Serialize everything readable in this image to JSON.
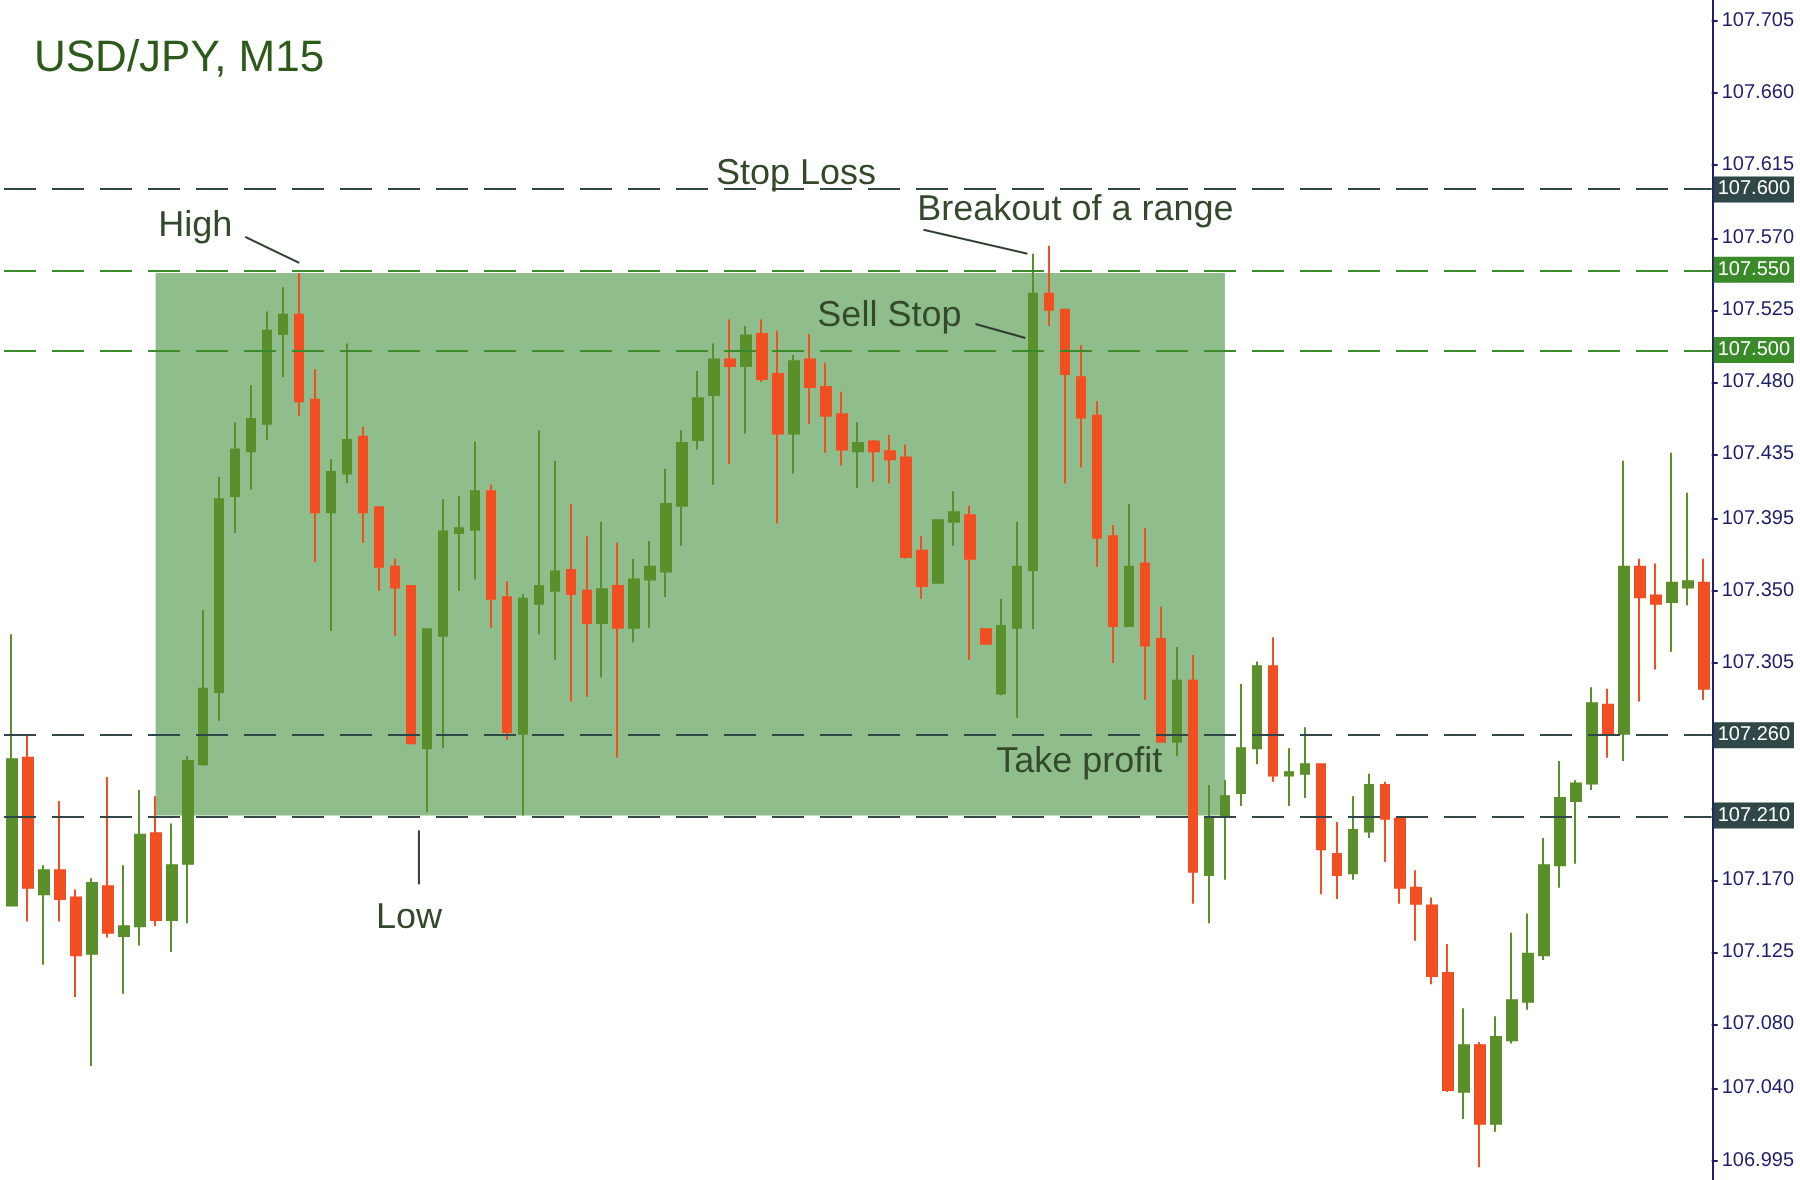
{
  "chart_data": {
    "type": "candlestick",
    "title": "USD/JPY, M15",
    "categories": [
      null,
      null,
      null,
      null,
      null,
      null,
      null,
      null,
      null,
      null,
      null,
      null,
      null,
      null,
      null,
      null,
      null,
      null,
      null,
      null,
      null,
      null,
      null,
      null,
      null,
      null,
      null,
      null,
      null,
      null,
      null,
      null,
      null,
      null,
      null,
      null,
      null,
      null,
      null,
      null,
      null,
      null,
      null,
      null,
      null,
      null,
      null,
      null,
      null,
      null,
      null,
      null,
      null,
      null,
      null,
      null,
      null,
      null,
      null,
      null,
      null,
      null,
      null,
      null,
      null,
      null,
      null,
      null,
      null,
      null,
      null,
      null,
      null,
      null,
      null,
      null,
      null,
      null,
      null,
      null,
      null,
      null,
      null,
      null,
      null,
      null,
      null,
      null,
      null,
      null,
      null,
      null,
      null,
      null,
      null,
      null,
      null,
      null,
      null,
      null,
      null,
      null,
      null,
      null,
      null,
      null,
      null
    ],
    "ohlc": [
      [
        107.154,
        107.323,
        107.154,
        107.245
      ],
      [
        107.246,
        107.26,
        107.144,
        107.165
      ],
      [
        107.161,
        107.179,
        107.117,
        107.176
      ],
      [
        107.176,
        107.219,
        107.144,
        107.158
      ],
      [
        107.159,
        107.164,
        107.097,
        107.123
      ],
      [
        107.124,
        107.171,
        107.054,
        107.168
      ],
      [
        107.166,
        107.234,
        107.134,
        107.137
      ],
      [
        107.135,
        107.179,
        107.099,
        107.141
      ],
      [
        107.141,
        107.226,
        107.129,
        107.198
      ],
      [
        107.199,
        107.222,
        107.141,
        107.145
      ],
      [
        107.145,
        107.205,
        107.125,
        107.179
      ],
      [
        107.18,
        107.247,
        107.143,
        107.244
      ],
      [
        107.242,
        107.338,
        107.241,
        107.289
      ],
      [
        107.287,
        107.421,
        107.269,
        107.407
      ],
      [
        107.409,
        107.455,
        107.386,
        107.438
      ],
      [
        107.437,
        107.478,
        107.413,
        107.457
      ],
      [
        107.454,
        107.524,
        107.444,
        107.512
      ],
      [
        107.51,
        107.539,
        107.483,
        107.522
      ],
      [
        107.522,
        107.548,
        107.459,
        107.468
      ],
      [
        107.469,
        107.488,
        107.368,
        107.399
      ],
      [
        107.399,
        107.432,
        107.325,
        107.424
      ],
      [
        107.423,
        107.504,
        107.417,
        107.444
      ],
      [
        107.446,
        107.452,
        107.38,
        107.399
      ],
      [
        107.402,
        107.402,
        107.35,
        107.365
      ],
      [
        107.365,
        107.37,
        107.322,
        107.352
      ],
      [
        107.353,
        107.353,
        107.255,
        107.255
      ],
      [
        107.252,
        107.326,
        107.212,
        107.326
      ],
      [
        107.322,
        107.407,
        107.252,
        107.387
      ],
      [
        107.386,
        107.409,
        107.35,
        107.389
      ],
      [
        107.388,
        107.443,
        107.357,
        107.412
      ],
      [
        107.412,
        107.416,
        107.327,
        107.345
      ],
      [
        107.346,
        107.356,
        107.257,
        107.262
      ],
      [
        107.261,
        107.348,
        107.21,
        107.345
      ],
      [
        107.342,
        107.45,
        107.323,
        107.353
      ],
      [
        107.35,
        107.431,
        107.307,
        107.362
      ],
      [
        107.363,
        107.404,
        107.281,
        107.348
      ],
      [
        107.35,
        107.384,
        107.284,
        107.33
      ],
      [
        107.33,
        107.393,
        107.296,
        107.351
      ],
      [
        107.353,
        107.38,
        107.246,
        107.327
      ],
      [
        107.327,
        107.37,
        107.318,
        107.357
      ],
      [
        107.357,
        107.381,
        107.327,
        107.365
      ],
      [
        107.362,
        107.426,
        107.346,
        107.404
      ],
      [
        107.403,
        107.45,
        107.378,
        107.442
      ],
      [
        107.444,
        107.487,
        107.438,
        107.47
      ],
      [
        107.472,
        107.504,
        107.416,
        107.494
      ],
      [
        107.494,
        107.519,
        107.429,
        107.49
      ],
      [
        107.49,
        107.515,
        107.448,
        107.509
      ],
      [
        107.51,
        107.519,
        107.48,
        107.482
      ],
      [
        107.485,
        107.512,
        107.392,
        107.448
      ],
      [
        107.448,
        107.497,
        107.423,
        107.493
      ],
      [
        107.494,
        107.51,
        107.454,
        107.477
      ],
      [
        107.477,
        107.492,
        107.436,
        107.459
      ],
      [
        107.46,
        107.474,
        107.428,
        107.438
      ],
      [
        107.437,
        107.455,
        107.414,
        107.442
      ],
      [
        107.443,
        107.444,
        107.418,
        107.437
      ],
      [
        107.437,
        107.447,
        107.417,
        107.432
      ],
      [
        107.433,
        107.441,
        107.37,
        107.371
      ],
      [
        107.375,
        107.384,
        107.345,
        107.353
      ],
      [
        107.355,
        107.394,
        107.355,
        107.394
      ],
      [
        107.393,
        107.412,
        107.378,
        107.399
      ],
      [
        107.397,
        107.403,
        107.307,
        107.37
      ],
      [
        107.326,
        107.326,
        107.317,
        107.317
      ],
      [
        107.286,
        107.345,
        107.285,
        107.328
      ],
      [
        107.327,
        107.393,
        107.271,
        107.365
      ],
      [
        107.363,
        107.56,
        107.326,
        107.535
      ],
      [
        107.535,
        107.565,
        107.515,
        107.525
      ],
      [
        107.525,
        107.525,
        107.417,
        107.485
      ],
      [
        107.483,
        107.503,
        107.427,
        107.458
      ],
      [
        107.459,
        107.468,
        107.365,
        107.383
      ],
      [
        107.384,
        107.391,
        107.305,
        107.328
      ],
      [
        107.328,
        107.404,
        107.328,
        107.365
      ],
      [
        107.367,
        107.389,
        107.282,
        107.316
      ],
      [
        107.32,
        107.34,
        107.256,
        107.256
      ],
      [
        107.256,
        107.315,
        107.247,
        107.294
      ],
      [
        107.294,
        107.31,
        107.155,
        107.175
      ],
      [
        107.173,
        107.229,
        107.143,
        107.209
      ],
      [
        107.21,
        107.232,
        107.17,
        107.222
      ],
      [
        107.224,
        107.292,
        107.216,
        107.252
      ],
      [
        107.252,
        107.306,
        107.242,
        107.303
      ],
      [
        107.303,
        107.321,
        107.231,
        107.235
      ],
      [
        107.235,
        107.252,
        107.216,
        107.237
      ],
      [
        107.236,
        107.265,
        107.221,
        107.242
      ],
      [
        107.242,
        107.242,
        107.161,
        107.189
      ],
      [
        107.186,
        107.206,
        107.158,
        107.173
      ],
      [
        107.174,
        107.222,
        107.17,
        107.201
      ],
      [
        107.2,
        107.236,
        107.196,
        107.229
      ],
      [
        107.229,
        107.231,
        107.181,
        107.208
      ],
      [
        107.208,
        107.208,
        107.155,
        107.165
      ],
      [
        107.165,
        107.176,
        107.132,
        107.155
      ],
      [
        107.154,
        107.159,
        107.105,
        107.11
      ],
      [
        107.112,
        107.13,
        107.038,
        107.039
      ],
      [
        107.038,
        107.09,
        107.021,
        107.067
      ],
      [
        107.067,
        107.069,
        106.991,
        107.018
      ],
      [
        107.018,
        107.085,
        107.013,
        107.072
      ],
      [
        107.07,
        107.137,
        107.068,
        107.095
      ],
      [
        107.094,
        107.149,
        107.089,
        107.124
      ],
      [
        107.123,
        107.196,
        107.12,
        107.179
      ],
      [
        107.179,
        107.244,
        107.165,
        107.221
      ],
      [
        107.219,
        107.232,
        107.18,
        107.23
      ],
      [
        107.23,
        107.29,
        107.226,
        107.28
      ],
      [
        107.279,
        107.289,
        107.246,
        107.261
      ],
      [
        107.261,
        107.431,
        107.244,
        107.365
      ],
      [
        107.365,
        107.37,
        107.281,
        107.346
      ],
      [
        107.347,
        107.367,
        107.301,
        107.342
      ],
      [
        107.343,
        107.436,
        107.312,
        107.355
      ],
      [
        107.352,
        107.411,
        107.341,
        107.356
      ],
      [
        107.355,
        107.37,
        107.282,
        107.289
      ]
    ],
    "colors": [
      "#5a8f2b",
      "#f24e22",
      "#5a8f2b",
      "#f24e22",
      "#f24e22",
      "#5a8f2b",
      "#f24e22",
      "#5a8f2b",
      "#5a8f2b",
      "#f24e22",
      "#5a8f2b",
      "#5a8f2b",
      "#5a8f2b",
      "#5a8f2b",
      "#5a8f2b",
      "#5a8f2b",
      "#5a8f2b",
      "#5a8f2b",
      "#f24e22",
      "#f24e22",
      "#5a8f2b",
      "#5a8f2b",
      "#f24e22",
      "#f24e22",
      "#f24e22",
      "#f24e22",
      "#5a8f2b",
      "#5a8f2b",
      "#5a8f2b",
      "#5a8f2b",
      "#f24e22",
      "#f24e22",
      "#5a8f2b",
      "#5a8f2b",
      "#5a8f2b",
      "#f24e22",
      "#f24e22",
      "#5a8f2b",
      "#f24e22",
      "#5a8f2b",
      "#5a8f2b",
      "#5a8f2b",
      "#5a8f2b",
      "#5a8f2b",
      "#5a8f2b",
      "#f24e22",
      "#5a8f2b",
      "#f24e22",
      "#f24e22",
      "#5a8f2b",
      "#f24e22",
      "#f24e22",
      "#f24e22",
      "#5a8f2b",
      "#f24e22",
      "#f24e22",
      "#f24e22",
      "#f24e22",
      "#5a8f2b",
      "#5a8f2b",
      "#f24e22",
      "#f24e22",
      "#5a8f2b",
      "#5a8f2b",
      "#5a8f2b",
      "#f24e22",
      "#f24e22",
      "#f24e22",
      "#f24e22",
      "#f24e22",
      "#5a8f2b",
      "#f24e22",
      "#f24e22",
      "#5a8f2b",
      "#f24e22",
      "#5a8f2b",
      "#5a8f2b",
      "#5a8f2b",
      "#5a8f2b",
      "#f24e22",
      "#5a8f2b",
      "#5a8f2b",
      "#f24e22",
      "#f24e22",
      "#5a8f2b",
      "#5a8f2b",
      "#f24e22",
      "#f24e22",
      "#f24e22",
      "#f24e22",
      "#f24e22",
      "#5a8f2b",
      "#f24e22",
      "#5a8f2b",
      "#5a8f2b",
      "#5a8f2b",
      "#5a8f2b",
      "#5a8f2b",
      "#5a8f2b",
      "#5a8f2b",
      "#f24e22",
      "#5a8f2b",
      "#f24e22",
      "#f24e22",
      "#5a8f2b",
      "#5a8f2b",
      "#f24e22"
    ],
    "ylim": [
      106.983,
      107.718
    ],
    "yticks": [
      106.995,
      {
        "value": 107.04,
        "label": "107.040"
      },
      {
        "value": 107.08,
        "label": "107.080"
      },
      107.125,
      {
        "value": 107.17,
        "label": "107.170"
      },
      {
        "value": 107.215,
        "label": null
      },
      {
        "value": 107.26,
        "label": null
      },
      107.305,
      {
        "value": 107.35,
        "label": "107.350"
      },
      107.395,
      107.435,
      {
        "value": 107.48,
        "label": "107.480"
      },
      107.525,
      {
        "value": 107.57,
        "label": "107.570"
      },
      107.615,
      {
        "value": 107.66,
        "label": "107.660"
      },
      107.705
    ],
    "tick_labels": "y",
    "ref_lines": [
      {
        "axis": "y",
        "value": 107.6,
        "label": "107.600",
        "color": "#2f4747",
        "line_style": "dashed"
      },
      {
        "axis": "y",
        "value": 107.55,
        "label": "107.550",
        "color": "#3b8a2a",
        "line_style": "dashed"
      },
      {
        "axis": "y",
        "value": 107.5,
        "label": "107.500",
        "color": "#3b8a2a",
        "line_style": "dashed"
      },
      {
        "axis": "y",
        "value": 107.26,
        "label": "107.260",
        "color": "#2f4747",
        "line_style": "dashed"
      },
      {
        "axis": "y",
        "value": 107.21,
        "label": "107.210",
        "color": "#2f4747",
        "line_style": "dashed"
      }
    ],
    "bands": [
      {
        "axis": "y",
        "from": 107.21,
        "to": 107.548,
        "color": "#8fbd8b"
      }
    ],
    "annotations": [
      {
        "text": "Stop Loss",
        "y": 107.6
      },
      {
        "text": "High",
        "y": 107.548
      },
      {
        "text": "Breakout of a range",
        "y": 107.55
      },
      {
        "text": "Sell Stop",
        "y": 107.5
      },
      {
        "text": "Take profit",
        "y": 107.26
      },
      {
        "text": "Low",
        "y": 107.212
      }
    ]
  }
}
